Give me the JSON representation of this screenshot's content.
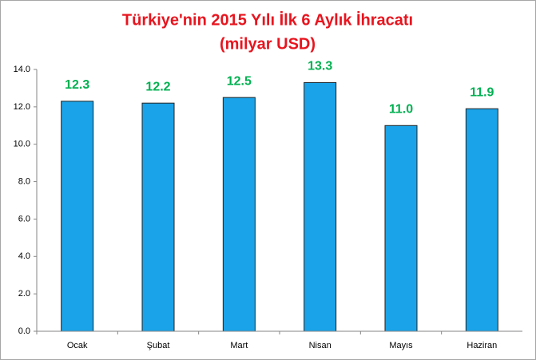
{
  "chart_data": {
    "type": "bar",
    "title": "Türkiye'nin 2015 Yılı İlk 6 Aylık İhracatı",
    "subtitle": "(milyar USD)",
    "categories": [
      "Ocak",
      "Şubat",
      "Mart",
      "Nisan",
      "Mayıs",
      "Haziran"
    ],
    "values": [
      12.3,
      12.2,
      12.5,
      13.3,
      11.0,
      11.9
    ],
    "value_labels": [
      "12.3",
      "12.2",
      "12.5",
      "13.3",
      "11.0",
      "11.9"
    ],
    "color": "#1aa3e8",
    "label_color": "#00b050",
    "ylim": [
      0,
      14
    ],
    "yticks": [
      {
        "value": 0,
        "label": "0.0"
      },
      {
        "value": 2,
        "label": "2.0"
      },
      {
        "value": 4,
        "label": "4.0"
      },
      {
        "value": 6,
        "label": "6.0"
      },
      {
        "value": 8,
        "label": "8.0"
      },
      {
        "value": 10,
        "label": "10.0"
      },
      {
        "value": 12,
        "label": "12.0"
      },
      {
        "value": 14,
        "label": "14.0"
      }
    ],
    "grid": false
  }
}
